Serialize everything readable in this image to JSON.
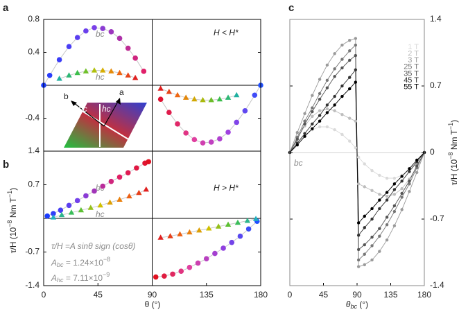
{
  "chart_data": [
    {
      "type": "scatter",
      "panel_label": "a",
      "xlim": [
        0,
        180
      ],
      "ylim": [
        -0.8,
        0.8
      ],
      "yticks": [
        0.8,
        0.4,
        -0.4
      ],
      "line_color": "#c8c8c8",
      "annotations": [
        "bc",
        "hc",
        "H < H*"
      ],
      "inset_labels": [
        "b",
        "a",
        "bc",
        "hc"
      ],
      "series": [
        {
          "marker": "circle",
          "color_stops": [
            "#1a3cff",
            "#7a40e8",
            "#e0206a"
          ],
          "x": [
            0,
            5,
            13,
            21,
            28,
            35,
            42,
            49,
            56,
            63,
            70,
            76,
            83
          ],
          "values": [
            0,
            0.12,
            0.31,
            0.47,
            0.58,
            0.66,
            0.7,
            0.69,
            0.65,
            0.57,
            0.45,
            0.33,
            0.17
          ]
        },
        {
          "marker": "circle",
          "color_stops": [
            "#e01030",
            "#e040a0",
            "#a040e0",
            "#2050ff"
          ],
          "x": [
            97,
            104,
            111,
            118,
            125,
            132,
            139,
            146,
            153,
            160,
            167,
            175,
            180
          ],
          "values": [
            -0.17,
            -0.33,
            -0.47,
            -0.58,
            -0.66,
            -0.7,
            -0.69,
            -0.65,
            -0.57,
            -0.45,
            -0.31,
            -0.12,
            0
          ]
        },
        {
          "marker": "triangle",
          "color_stops": [
            "#20b0a0",
            "#40c040",
            "#d0c000",
            "#f07010",
            "#e02020"
          ],
          "x": [
            13,
            21,
            28,
            35,
            42,
            49,
            56,
            63,
            70,
            76
          ],
          "values": [
            0.08,
            0.12,
            0.15,
            0.17,
            0.18,
            0.18,
            0.17,
            0.15,
            0.12,
            0.09
          ]
        },
        {
          "marker": "triangle",
          "color_stops": [
            "#e02020",
            "#f07010",
            "#c8b800",
            "#40c040",
            "#20b0a0"
          ],
          "x": [
            97,
            104,
            111,
            118,
            125,
            132,
            139,
            146,
            153,
            160
          ],
          "values": [
            -0.04,
            -0.08,
            -0.12,
            -0.15,
            -0.17,
            -0.18,
            -0.18,
            -0.17,
            -0.15,
            -0.12
          ]
        }
      ]
    },
    {
      "type": "scatter",
      "panel_label": "b",
      "xlim": [
        0,
        180
      ],
      "ylim": [
        -1.4,
        1.4
      ],
      "yticks": [
        1.4,
        0.7,
        -0.7,
        -1.4
      ],
      "xticks": [
        0,
        45,
        90,
        135,
        180
      ],
      "line_color": "#c8c8c8",
      "xlabel": "θ (°)",
      "ylabel": [
        "τ/H (10",
        "−8",
        " Nm T",
        "−1",
        ")"
      ],
      "annotations": [
        "bc",
        "hc",
        "H > H*"
      ],
      "formula": "τ/H =A sinθ sign (cosθ)",
      "A_bc": [
        "A",
        "bc",
        " = 1.24×10",
        "−8"
      ],
      "A_hc": [
        "A",
        "hc",
        " = 7.11×10",
        "−9"
      ],
      "series": [
        {
          "marker": "circle",
          "color_stops": [
            "#1a3cff",
            "#7a40e8",
            "#e0206a",
            "#e01020"
          ],
          "x": [
            3,
            8,
            14,
            21,
            28,
            35,
            42,
            49,
            56,
            63,
            70,
            77,
            84,
            87
          ],
          "values": [
            0.05,
            0.1,
            0.17,
            0.27,
            0.37,
            0.47,
            0.57,
            0.67,
            0.77,
            0.86,
            0.95,
            1.05,
            1.15,
            1.18
          ]
        },
        {
          "marker": "circle",
          "color_stops": [
            "#e01020",
            "#e040a0",
            "#9040e0",
            "#2050ff"
          ],
          "x": [
            93,
            100,
            107,
            114,
            121,
            128,
            135,
            142,
            149,
            156,
            163,
            170,
            177
          ],
          "values": [
            -1.22,
            -1.2,
            -1.16,
            -1.1,
            -1.02,
            -0.93,
            -0.84,
            -0.73,
            -0.62,
            -0.5,
            -0.37,
            -0.22,
            -0.06
          ]
        },
        {
          "marker": "triangle",
          "color_stops": [
            "#20b0c0",
            "#40c040",
            "#d0c000",
            "#f07010",
            "#e02020"
          ],
          "x": [
            8,
            15,
            23,
            31,
            39,
            47,
            55,
            63,
            71,
            79,
            85
          ],
          "values": [
            0.02,
            0.07,
            0.12,
            0.17,
            0.22,
            0.27,
            0.33,
            0.39,
            0.46,
            0.53,
            0.6
          ]
        },
        {
          "marker": "triangle",
          "color_stops": [
            "#e02020",
            "#f07010",
            "#d0c000",
            "#40c040",
            "#20b0c0"
          ],
          "x": [
            97,
            105,
            113,
            121,
            129,
            137,
            145,
            153,
            161,
            169,
            176
          ],
          "values": [
            -0.4,
            -0.37,
            -0.33,
            -0.29,
            -0.25,
            -0.21,
            -0.17,
            -0.13,
            -0.09,
            -0.05,
            -0.01
          ]
        }
      ]
    },
    {
      "type": "scatter",
      "panel_label": "c",
      "xlim": [
        0,
        180
      ],
      "ylim": [
        -1.4,
        1.4
      ],
      "yticks": [
        1.4,
        0.7,
        0,
        -0.7,
        -1.4
      ],
      "xticks": [
        0,
        45,
        90,
        135,
        180
      ],
      "xlabel": [
        "θ",
        "bc",
        " (°)"
      ],
      "ylabel": [
        "τ/H (10",
        "−8",
        " Nm T",
        "−1",
        ")"
      ],
      "annotations": [
        "bc"
      ],
      "x": [
        0,
        10,
        20,
        30,
        40,
        50,
        60,
        70,
        80,
        88,
        92,
        100,
        110,
        120,
        130,
        140,
        150,
        160,
        170,
        180
      ],
      "series": [
        {
          "name": "1 T",
          "color": "#dadada",
          "marker": "dot",
          "values": [
            0,
            0.1,
            0.18,
            0.24,
            0.27,
            0.27,
            0.24,
            0.19,
            0.12,
            0.05,
            -0.05,
            -0.12,
            -0.19,
            -0.24,
            -0.27,
            -0.27,
            -0.24,
            -0.18,
            -0.1,
            0
          ]
        },
        {
          "name": "2 T",
          "color": "#bdbdbd",
          "marker": "dot",
          "values": [
            0,
            0.15,
            0.28,
            0.38,
            0.44,
            0.46,
            0.44,
            0.4,
            0.36,
            0.33,
            -0.33,
            -0.36,
            -0.4,
            -0.44,
            -0.46,
            -0.44,
            -0.38,
            -0.28,
            -0.15,
            0
          ]
        },
        {
          "name": "3 T",
          "color": "#9a9a9a",
          "marker": "dot",
          "values": [
            0,
            0.21,
            0.41,
            0.6,
            0.77,
            0.92,
            1.04,
            1.13,
            1.18,
            1.2,
            -1.2,
            -1.18,
            -1.13,
            -1.04,
            -0.92,
            -0.77,
            -0.6,
            -0.41,
            -0.21,
            0
          ]
        },
        {
          "name": "25 T",
          "color": "#777777",
          "marker": "dot",
          "values": [
            0,
            0.16,
            0.33,
            0.47,
            0.62,
            0.76,
            0.88,
            0.98,
            1.07,
            1.13,
            -1.13,
            -1.07,
            -0.98,
            -0.88,
            -0.76,
            -0.62,
            -0.47,
            -0.33,
            -0.16,
            0
          ]
        },
        {
          "name": "35 T",
          "color": "#555555",
          "marker": "dot",
          "values": [
            0,
            0.14,
            0.3,
            0.43,
            0.56,
            0.68,
            0.8,
            0.89,
            0.97,
            1.02,
            -1.02,
            -0.97,
            -0.89,
            -0.8,
            -0.68,
            -0.56,
            -0.43,
            -0.3,
            -0.14,
            0
          ]
        },
        {
          "name": "45 T",
          "color": "#333333",
          "marker": "dot",
          "values": [
            0,
            0.1,
            0.2,
            0.3,
            0.39,
            0.5,
            0.59,
            0.7,
            0.79,
            0.87,
            -0.87,
            -0.79,
            -0.7,
            -0.59,
            -0.5,
            -0.39,
            -0.3,
            -0.2,
            -0.1,
            0
          ]
        },
        {
          "name": "55 T",
          "color": "#000000",
          "marker": "dot",
          "values": [
            0,
            0.08,
            0.17,
            0.25,
            0.33,
            0.42,
            0.5,
            0.59,
            0.67,
            0.74,
            -0.74,
            -0.67,
            -0.59,
            -0.5,
            -0.42,
            -0.33,
            -0.25,
            -0.17,
            -0.08,
            0
          ]
        }
      ]
    }
  ]
}
